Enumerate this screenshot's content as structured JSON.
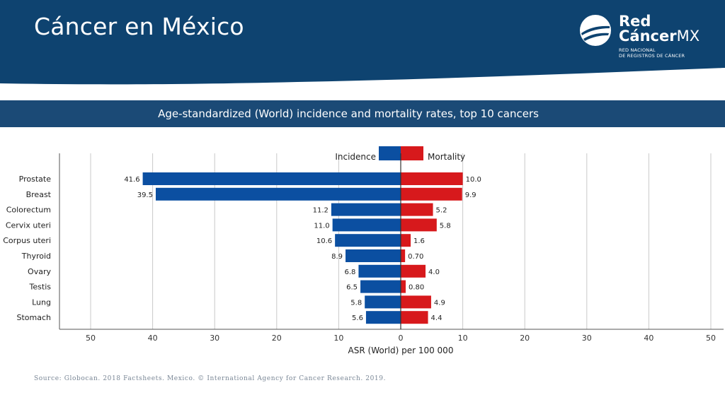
{
  "page": {
    "title": "Cáncer en México",
    "source": "Source: Globocan. 2018 Factsheets. Mexico. © International Agency for Cancer Research. 2019."
  },
  "logo": {
    "name_line1": "Red",
    "name_line2_bold": "Cáncer",
    "name_line2_suffix": "MX",
    "subtitle_line1": "RED NACIONAL",
    "subtitle_line2": "DE REGISTROS DE CÁNCER"
  },
  "colors": {
    "header_bg": "#0e4370",
    "band_bg": "#1b4a76",
    "incidence": "#0b4fa1",
    "mortality": "#d7191c"
  },
  "chart_data": {
    "type": "bar",
    "orientation": "horizontal-diverging",
    "title": "Age-standardized (World) incidence and mortality rates, top 10 cancers",
    "xlabel": "ASR (World) per 100 000",
    "xlim": [
      -50,
      50
    ],
    "xticks": [
      -50,
      -40,
      -30,
      -20,
      -10,
      0,
      10,
      20,
      30,
      40,
      50
    ],
    "xtick_labels": [
      "50",
      "40",
      "30",
      "20",
      "10",
      "0",
      "10",
      "20",
      "30",
      "40",
      "50"
    ],
    "grid": true,
    "legend_position": "top-center",
    "categories": [
      "Prostate",
      "Breast",
      "Colorectum",
      "Cervix uteri",
      "Corpus uteri",
      "Thyroid",
      "Ovary",
      "Testis",
      "Lung",
      "Stomach"
    ],
    "series": [
      {
        "name": "Incidence",
        "side": "left",
        "values": [
          41.6,
          39.5,
          11.2,
          11.0,
          10.6,
          8.9,
          6.8,
          6.5,
          5.8,
          5.6
        ],
        "labels": [
          "41.6",
          "39.5",
          "11.2",
          "11.0",
          "10.6",
          "8.9",
          "6.8",
          "6.5",
          "5.8",
          "5.6"
        ]
      },
      {
        "name": "Mortality",
        "side": "right",
        "values": [
          10.0,
          9.9,
          5.2,
          5.8,
          1.6,
          0.7,
          4.0,
          0.8,
          4.9,
          4.4
        ],
        "labels": [
          "10.0",
          "9.9",
          "5.2",
          "5.8",
          "1.6",
          "0.70",
          "4.0",
          "0.80",
          "4.9",
          "4.4"
        ]
      }
    ]
  }
}
